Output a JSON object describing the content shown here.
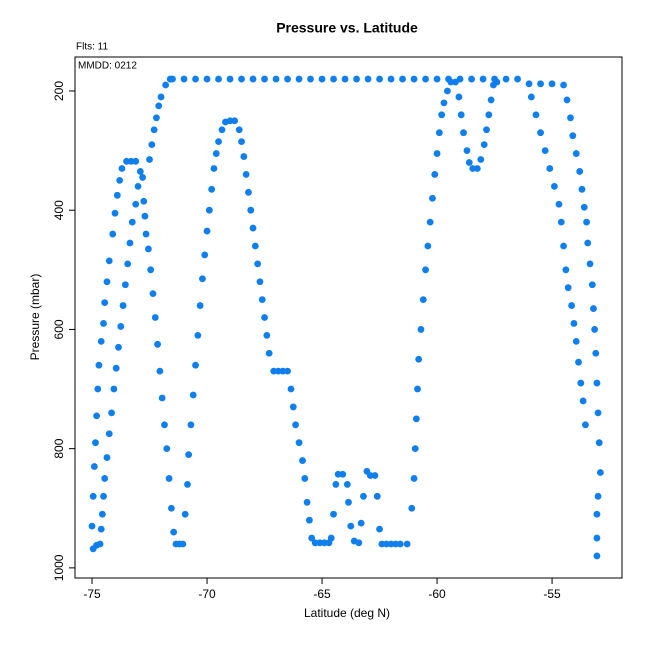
{
  "chart_data": {
    "type": "scatter",
    "title": "Pressure vs. Latitude",
    "annotations": [
      "Flts: 11",
      "MMDD: 0212"
    ],
    "x_label": "Latitude (deg N)",
    "y_label": "Pressure (mbar)",
    "xlim": [
      -75.74,
      -51.96
    ],
    "ylim": [
      1017,
      143
    ],
    "xticks": [
      -75,
      -70,
      -65,
      -60,
      -55
    ],
    "yticks": [
      200,
      400,
      600,
      800,
      1000
    ],
    "color": "#0f7fef",
    "x": [
      -75,
      -74.95,
      -74.9,
      -74.85,
      -74.8,
      -74.75,
      -74.7,
      -74.6,
      -74.5,
      -74.45,
      -74.35,
      -74.25,
      -74.1,
      -74,
      -73.9,
      -73.8,
      -73.7,
      -73.5,
      -73.3,
      -73.1,
      -74.95,
      -74.8,
      -74.65,
      -74.6,
      -74.55,
      -74.5,
      -74.45,
      -74.35,
      -74.25,
      -74.15,
      -74.05,
      -73.95,
      -73.85,
      -73.75,
      -73.65,
      -73.55,
      -73.45,
      -73.35,
      -73.25,
      -73.1,
      -73,
      -72.9,
      -72.8,
      -72.75,
      -72.7,
      -72.65,
      -72.55,
      -72.45,
      -72.35,
      -72.25,
      -72.15,
      -72.05,
      -71.95,
      -71.85,
      -71.75,
      -71.65,
      -71.55,
      -71.45,
      -71.35,
      -71.2,
      -71.05,
      -72.5,
      -72.4,
      -72.3,
      -72.2,
      -72.1,
      -72,
      -71.8,
      -71.6,
      -71.5,
      -71,
      -70.5,
      -70,
      -69.5,
      -69,
      -68.5,
      -68,
      -67.5,
      -67,
      -66.5,
      -66,
      -65.5,
      -65,
      -64.5,
      -64,
      -63.5,
      -63,
      -62.5,
      -62,
      -61.5,
      -61,
      -60.5,
      -60,
      -59.5,
      -59,
      -58.5,
      -58,
      -57.5,
      -57,
      -56.5,
      -70.95,
      -70.85,
      -70.8,
      -70.7,
      -70.6,
      -70.5,
      -70.4,
      -70.3,
      -70.2,
      -70.1,
      -70,
      -69.9,
      -69.8,
      -69.7,
      -69.6,
      -69.5,
      -69.35,
      -69.2,
      -69,
      -68.8,
      -68.6,
      -68.5,
      -68.4,
      -68.3,
      -68.2,
      -68.1,
      -68,
      -67.9,
      -67.8,
      -67.7,
      -67.6,
      -67.5,
      -67.4,
      -67.3,
      -67.1,
      -66.9,
      -66.7,
      -66.5,
      -66.35,
      -66.25,
      -66.15,
      -66,
      -65.85,
      -65.75,
      -65.65,
      -65.55,
      -65.45,
      -65.3,
      -65.1,
      -64.9,
      -64.7,
      -64.6,
      -64.5,
      -64.4,
      -64.3,
      -64.1,
      -63.9,
      -63.85,
      -63.75,
      -63.6,
      -63.4,
      -63.3,
      -63.2,
      -63.05,
      -62.9,
      -62.7,
      -62.6,
      -62.5,
      -62.4,
      -62.2,
      -62,
      -61.8,
      -61.6,
      -61.3,
      -61.1,
      -61,
      -60.95,
      -60.9,
      -60.85,
      -60.8,
      -60.7,
      -60.6,
      -60.5,
      -60.4,
      -60.3,
      -60.2,
      -60.1,
      -60,
      -59.9,
      -59.8,
      -59.7,
      -59.55,
      -59.4,
      -59.2,
      -59.05,
      -58.95,
      -58.85,
      -58.7,
      -58.6,
      -58.45,
      -58.25,
      -58.1,
      -57.95,
      -57.85,
      -57.75,
      -57.65,
      -57.55,
      -57.4,
      -56,
      -55.5,
      -55,
      -54.5,
      -54.35,
      -54.2,
      -54.1,
      -53.95,
      -53.8,
      -53.7,
      -53.6,
      -53.5,
      -53.45,
      -53.35,
      -53.25,
      -53.2,
      -53.15,
      -53.1,
      -53.05,
      -53,
      -52.95,
      -52.9,
      -53,
      -53.05,
      -53.05,
      -53.05,
      -55.9,
      -55.7,
      -55.5,
      -55.3,
      -55.1,
      -54.9,
      -54.7,
      -54.6,
      -54.5,
      -54.4,
      -54.3,
      -54.15,
      -54.05,
      -53.95,
      -53.85,
      -53.75,
      -53.65,
      -53.55
    ],
    "values": [
      930,
      880,
      830,
      790,
      745,
      700,
      660,
      620,
      590,
      555,
      520,
      485,
      440,
      405,
      375,
      350,
      330,
      318,
      318,
      318,
      968,
      962,
      960,
      935,
      910,
      880,
      850,
      815,
      775,
      740,
      700,
      665,
      630,
      595,
      560,
      525,
      490,
      455,
      420,
      390,
      360,
      335,
      345,
      385,
      410,
      440,
      465,
      500,
      540,
      580,
      625,
      670,
      715,
      760,
      800,
      850,
      900,
      940,
      960,
      960,
      960,
      315,
      290,
      265,
      245,
      225,
      210,
      190,
      180,
      180,
      180,
      180,
      180,
      180,
      180,
      180,
      180,
      180,
      180,
      180,
      180,
      180,
      180,
      180,
      180,
      180,
      180,
      180,
      180,
      180,
      180,
      180,
      180,
      180,
      180,
      180,
      180,
      180,
      180,
      180,
      910,
      860,
      810,
      760,
      710,
      660,
      610,
      560,
      515,
      475,
      435,
      400,
      365,
      330,
      305,
      285,
      265,
      252,
      250,
      250,
      265,
      285,
      310,
      340,
      370,
      400,
      430,
      460,
      490,
      520,
      550,
      580,
      610,
      640,
      670,
      670,
      670,
      670,
      700,
      730,
      760,
      790,
      820,
      850,
      890,
      920,
      950,
      958,
      958,
      958,
      958,
      950,
      910,
      860,
      843,
      843,
      860,
      890,
      930,
      955,
      958,
      925,
      880,
      838,
      845,
      845,
      880,
      935,
      960,
      960,
      960,
      960,
      960,
      960,
      900,
      850,
      800,
      750,
      700,
      650,
      600,
      550,
      500,
      460,
      420,
      380,
      340,
      305,
      270,
      240,
      220,
      200,
      185,
      185,
      210,
      240,
      270,
      300,
      320,
      330,
      330,
      315,
      290,
      265,
      240,
      215,
      190,
      185,
      188,
      188,
      188,
      190,
      215,
      245,
      275,
      305,
      335,
      365,
      395,
      420,
      455,
      490,
      525,
      565,
      600,
      640,
      690,
      740,
      790,
      840,
      880,
      910,
      950,
      980,
      210,
      240,
      270,
      300,
      330,
      360,
      390,
      420,
      460,
      500,
      530,
      560,
      590,
      620,
      655,
      690,
      720,
      760
    ]
  }
}
